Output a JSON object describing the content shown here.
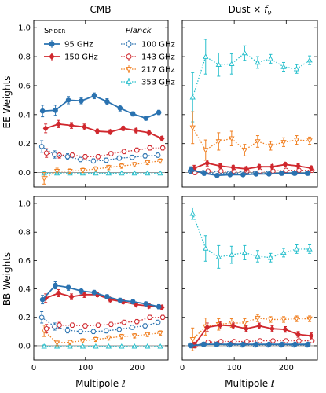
{
  "columns": [
    {
      "title": "CMB"
    },
    {
      "title_parts": [
        "Dust × ",
        "f",
        "ν"
      ]
    }
  ],
  "rows": [
    {
      "ylabel": "EE Weights"
    },
    {
      "ylabel": "BB Weights"
    }
  ],
  "xlabel": "Multipole ℓ",
  "legend": {
    "group1_heading": "Spider",
    "group2_heading": "Planck"
  },
  "colors": {
    "95 GHz": "#2a72b0",
    "150 GHz": "#d0282e",
    "100 GHz": "#2a72b0",
    "143 GHz": "#d0282e",
    "217 GHz": "#f07f20",
    "353 GHz": "#27bfcc"
  },
  "chart_data": [
    {
      "type": "line",
      "panel": "EE-CMB",
      "column_title": "CMB",
      "ylabel": "EE Weights",
      "x": [
        20,
        45,
        70,
        95,
        120,
        145,
        170,
        195,
        220,
        245
      ],
      "xlim": [
        0,
        260
      ],
      "ylim": [
        -0.1,
        1.05
      ],
      "xticks": [
        0,
        100,
        200
      ],
      "yticks": [
        0.0,
        0.2,
        0.4,
        0.6,
        0.8,
        1.0
      ],
      "series": [
        {
          "name": "95 GHz",
          "group": "Spider",
          "style": "solid",
          "marker": "circle",
          "filled": true,
          "values": [
            0.425,
            0.43,
            0.5,
            0.495,
            0.53,
            0.49,
            0.445,
            0.405,
            0.375,
            0.415
          ],
          "err": [
            0.04,
            0.035,
            0.025,
            0.02,
            0.02,
            0.02,
            0.02,
            0.015,
            0.015,
            0.015
          ]
        },
        {
          "name": "150 GHz",
          "group": "Spider",
          "style": "solid",
          "marker": "diamond",
          "filled": true,
          "values": [
            0.305,
            0.335,
            0.325,
            0.315,
            0.285,
            0.28,
            0.305,
            0.29,
            0.275,
            0.235
          ],
          "err": [
            0.03,
            0.025,
            0.02,
            0.02,
            0.015,
            0.015,
            0.015,
            0.015,
            0.015,
            0.015
          ]
        },
        {
          "name": "100 GHz",
          "group": "Planck",
          "style": "dotted",
          "marker": "circle",
          "filled": false,
          "values": [
            0.18,
            0.125,
            0.11,
            0.09,
            0.08,
            0.085,
            0.1,
            0.105,
            0.115,
            0.12
          ],
          "err": [
            0.04,
            0.025,
            0.02,
            0.015,
            0.015,
            0.015,
            0.015,
            0.015,
            0.015,
            0.015
          ]
        },
        {
          "name": "143 GHz",
          "group": "Planck",
          "style": "dotted",
          "marker": "circle",
          "filled": false,
          "values": [
            0.135,
            0.12,
            0.12,
            0.11,
            0.11,
            0.13,
            0.145,
            0.155,
            0.17,
            0.17
          ],
          "err": [
            0.03,
            0.02,
            0.015,
            0.015,
            0.015,
            0.015,
            0.015,
            0.015,
            0.015,
            0.015
          ]
        },
        {
          "name": "217 GHz",
          "group": "Planck",
          "style": "dotted",
          "marker": "triangle-down",
          "filled": false,
          "values": [
            -0.04,
            0.01,
            0.01,
            0.015,
            0.025,
            0.035,
            0.045,
            0.055,
            0.07,
            0.08
          ],
          "err": [
            0.04,
            0.02,
            0.015,
            0.015,
            0.015,
            0.015,
            0.015,
            0.015,
            0.015,
            0.015
          ]
        },
        {
          "name": "353 GHz",
          "group": "Planck",
          "style": "dotted",
          "marker": "triangle-up",
          "filled": false,
          "values": [
            -0.005,
            -0.005,
            -0.005,
            -0.005,
            -0.005,
            -0.005,
            -0.005,
            -0.005,
            -0.005,
            -0.005
          ],
          "err": [
            0.01,
            0.008,
            0.006,
            0.006,
            0.006,
            0.006,
            0.006,
            0.006,
            0.006,
            0.006
          ]
        }
      ]
    },
    {
      "type": "line",
      "panel": "EE-Dust",
      "x": [
        20,
        45,
        70,
        95,
        120,
        145,
        170,
        195,
        220,
        245
      ],
      "xlim": [
        0,
        260
      ],
      "ylim": [
        -0.1,
        1.05
      ],
      "xticks": [
        0,
        100,
        200
      ],
      "yticks": [
        0.0,
        0.2,
        0.4,
        0.6,
        0.8,
        1.0
      ],
      "series": [
        {
          "name": "95 GHz",
          "values": [
            0.02,
            -0.005,
            -0.02,
            -0.015,
            -0.015,
            -0.01,
            -0.01,
            -0.005,
            -0.005,
            -0.005
          ],
          "err": [
            0.02,
            0.015,
            0.01,
            0.01,
            0.01,
            0.01,
            0.01,
            0.01,
            0.01,
            0.01
          ]
        },
        {
          "name": "150 GHz",
          "values": [
            0.03,
            0.065,
            0.045,
            0.035,
            0.025,
            0.04,
            0.04,
            0.055,
            0.045,
            0.03
          ],
          "err": [
            0.02,
            0.02,
            0.015,
            0.015,
            0.015,
            0.015,
            0.015,
            0.015,
            0.015,
            0.015
          ]
        },
        {
          "name": "100 GHz",
          "values": [
            0.01,
            0.0,
            -0.005,
            -0.005,
            -0.005,
            -0.005,
            -0.005,
            -0.005,
            -0.005,
            -0.005
          ],
          "err": [
            0.015,
            0.01,
            0.008,
            0.008,
            0.008,
            0.008,
            0.008,
            0.008,
            0.008,
            0.008
          ]
        },
        {
          "name": "143 GHz",
          "values": [
            0.0,
            0.01,
            0.01,
            0.01,
            0.01,
            0.01,
            0.01,
            0.015,
            0.015,
            0.015
          ],
          "err": [
            0.015,
            0.01,
            0.008,
            0.008,
            0.008,
            0.008,
            0.008,
            0.008,
            0.008,
            0.008
          ]
        },
        {
          "name": "217 GHz",
          "values": [
            0.31,
            0.155,
            0.215,
            0.235,
            0.155,
            0.215,
            0.185,
            0.21,
            0.225,
            0.22
          ],
          "err": [
            0.11,
            0.07,
            0.06,
            0.05,
            0.04,
            0.04,
            0.03,
            0.03,
            0.03,
            0.025
          ]
        },
        {
          "name": "353 GHz",
          "values": [
            0.52,
            0.8,
            0.745,
            0.75,
            0.825,
            0.76,
            0.785,
            0.73,
            0.715,
            0.775
          ],
          "err": [
            0.17,
            0.12,
            0.08,
            0.07,
            0.05,
            0.04,
            0.03,
            0.03,
            0.03,
            0.03
          ]
        }
      ]
    },
    {
      "type": "line",
      "panel": "BB-CMB",
      "ylabel": "BB Weights",
      "x": [
        20,
        45,
        70,
        95,
        120,
        145,
        170,
        195,
        220,
        245
      ],
      "xlim": [
        0,
        260
      ],
      "ylim": [
        -0.1,
        1.05
      ],
      "xticks": [
        0,
        100,
        200
      ],
      "yticks": [
        0.0,
        0.2,
        0.4,
        0.6,
        0.8,
        1.0
      ],
      "series": [
        {
          "name": "95 GHz",
          "values": [
            0.325,
            0.425,
            0.41,
            0.385,
            0.375,
            0.345,
            0.32,
            0.31,
            0.295,
            0.275
          ],
          "err": [
            0.03,
            0.025,
            0.02,
            0.02,
            0.015,
            0.015,
            0.015,
            0.015,
            0.015,
            0.015
          ]
        },
        {
          "name": "150 GHz",
          "values": [
            0.335,
            0.37,
            0.345,
            0.36,
            0.36,
            0.325,
            0.31,
            0.29,
            0.28,
            0.27
          ],
          "err": [
            0.03,
            0.025,
            0.02,
            0.02,
            0.015,
            0.015,
            0.015,
            0.015,
            0.015,
            0.015
          ]
        },
        {
          "name": "100 GHz",
          "values": [
            0.2,
            0.135,
            0.11,
            0.1,
            0.1,
            0.105,
            0.115,
            0.13,
            0.14,
            0.165
          ],
          "err": [
            0.04,
            0.025,
            0.02,
            0.015,
            0.015,
            0.015,
            0.015,
            0.015,
            0.015,
            0.015
          ]
        },
        {
          "name": "143 GHz",
          "values": [
            0.12,
            0.145,
            0.145,
            0.14,
            0.145,
            0.15,
            0.165,
            0.17,
            0.2,
            0.2
          ],
          "err": [
            0.03,
            0.02,
            0.015,
            0.015,
            0.015,
            0.015,
            0.015,
            0.015,
            0.015,
            0.015
          ]
        },
        {
          "name": "217 GHz",
          "values": [
            0.105,
            0.02,
            0.025,
            0.035,
            0.045,
            0.055,
            0.065,
            0.07,
            0.08,
            0.09
          ],
          "err": [
            0.04,
            0.02,
            0.015,
            0.015,
            0.015,
            0.015,
            0.015,
            0.015,
            0.015,
            0.015
          ]
        },
        {
          "name": "353 GHz",
          "values": [
            -0.005,
            -0.005,
            -0.005,
            -0.005,
            -0.005,
            -0.005,
            -0.005,
            -0.005,
            -0.005,
            -0.005
          ],
          "err": [
            0.01,
            0.008,
            0.006,
            0.006,
            0.006,
            0.006,
            0.006,
            0.006,
            0.006,
            0.006
          ]
        }
      ]
    },
    {
      "type": "line",
      "panel": "BB-Dust",
      "x": [
        20,
        45,
        70,
        95,
        120,
        145,
        170,
        195,
        220,
        245
      ],
      "xlim": [
        0,
        260
      ],
      "ylim": [
        -0.1,
        1.05
      ],
      "xticks": [
        0,
        100,
        200
      ],
      "yticks": [
        0.0,
        0.2,
        0.4,
        0.6,
        0.8,
        1.0
      ],
      "series": [
        {
          "name": "95 GHz",
          "values": [
            0.0,
            0.01,
            0.01,
            0.01,
            0.01,
            0.01,
            0.01,
            0.01,
            0.01,
            0.01
          ],
          "err": [
            0.015,
            0.01,
            0.008,
            0.008,
            0.008,
            0.008,
            0.008,
            0.008,
            0.008,
            0.008
          ]
        },
        {
          "name": "150 GHz",
          "values": [
            0.005,
            0.13,
            0.145,
            0.14,
            0.12,
            0.14,
            0.12,
            0.115,
            0.08,
            0.07
          ],
          "err": [
            0.02,
            0.03,
            0.025,
            0.02,
            0.02,
            0.02,
            0.02,
            0.02,
            0.02,
            0.02
          ]
        },
        {
          "name": "100 GHz",
          "values": [
            0.005,
            0.01,
            0.01,
            0.005,
            0.005,
            0.005,
            0.005,
            0.005,
            0.005,
            0.005
          ],
          "err": [
            0.012,
            0.008,
            0.006,
            0.006,
            0.006,
            0.006,
            0.006,
            0.006,
            0.006,
            0.006
          ]
        },
        {
          "name": "143 GHz",
          "values": [
            0.0,
            0.025,
            0.03,
            0.03,
            0.03,
            0.035,
            0.035,
            0.035,
            0.035,
            0.035
          ],
          "err": [
            0.015,
            0.01,
            0.008,
            0.008,
            0.008,
            0.008,
            0.008,
            0.008,
            0.008,
            0.008
          ]
        },
        {
          "name": "217 GHz",
          "values": [
            0.045,
            0.135,
            0.15,
            0.16,
            0.16,
            0.195,
            0.185,
            0.185,
            0.19,
            0.19
          ],
          "err": [
            0.08,
            0.06,
            0.04,
            0.03,
            0.03,
            0.025,
            0.02,
            0.02,
            0.02,
            0.02
          ]
        },
        {
          "name": "353 GHz",
          "values": [
            0.93,
            0.685,
            0.625,
            0.64,
            0.655,
            0.63,
            0.62,
            0.655,
            0.68,
            0.68
          ],
          "err": [
            0.04,
            0.09,
            0.08,
            0.06,
            0.05,
            0.04,
            0.03,
            0.03,
            0.03,
            0.03
          ]
        }
      ]
    }
  ]
}
